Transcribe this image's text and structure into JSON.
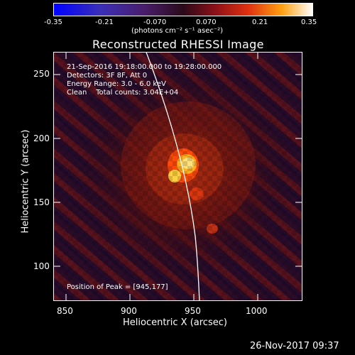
{
  "colorbar": {
    "ticks": [
      "-0.35",
      "-0.21",
      "-0.070",
      "0.070",
      "0.21",
      "0.35"
    ],
    "units": "(photons cm⁻² s⁻¹ asec⁻²)"
  },
  "title": "Reconstructed RHESSI Image",
  "info": {
    "time_range": "21-Sep-2016 19:18:00.000 to 19:28:00.000",
    "detectors": "Detectors: 3F 8F, Att 0",
    "energy_range": "Energy Range: 3.0 - 6.0 keV",
    "clean_counts": "Clean    Total counts: 3.04E+04",
    "peak_position": "Position of Peak = [945,177]"
  },
  "axes": {
    "x_label": "Heliocentric X (arcsec)",
    "y_label": "Heliocentric Y (arcsec)",
    "x_ticks": [
      "850",
      "900",
      "950",
      "1000"
    ],
    "y_ticks": [
      "100",
      "150",
      "200",
      "250"
    ]
  },
  "footer_timestamp": "26-Nov-2017 09:37"
}
